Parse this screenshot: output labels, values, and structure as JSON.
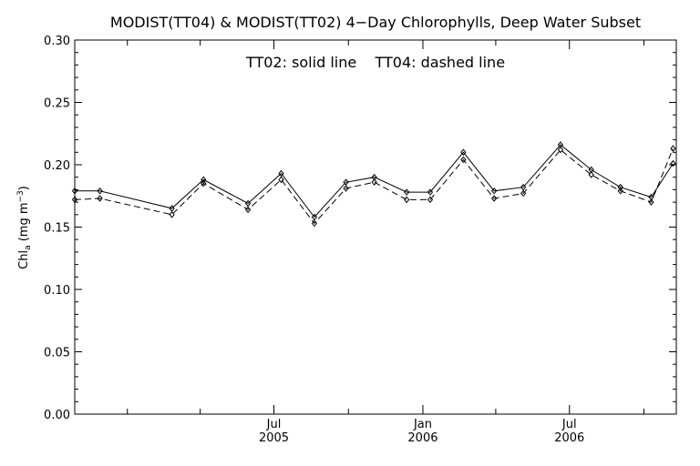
{
  "chart_data": {
    "type": "line",
    "title": "MODIST(TT04) & MODIST(TT02) 4−Day Chlorophylls, Deep Water Subset",
    "annotation": "TT02: solid line    TT04: dashed line",
    "ylabel": {
      "main": "Chl",
      "sub": "a",
      "units_open": " (mg m",
      "sup": "−3",
      "units_close": ")"
    },
    "xlabel": "",
    "ylim": [
      0.0,
      0.3
    ],
    "yticks": [
      "0.00",
      "0.05",
      "0.10",
      "0.15",
      "0.20",
      "0.25",
      "0.30"
    ],
    "xlim": [
      "2004-10-28",
      "2006-11-10"
    ],
    "xticks": [
      {
        "date": "2005-07-01",
        "month": "Jul",
        "year": "2005"
      },
      {
        "date": "2006-01-01",
        "month": "Jan",
        "year": "2006"
      },
      {
        "date": "2006-07-01",
        "month": "Jul",
        "year": "2006"
      }
    ],
    "minor_ticks": [
      "2004-10-01",
      "2005-01-01",
      "2005-04-01",
      "2005-10-01",
      "2006-04-01",
      "2006-10-01"
    ],
    "grid": false,
    "series": [
      {
        "name": "TT02",
        "style": "solid",
        "x": [
          "2004-10-28",
          "2004-11-28",
          "2005-02-25",
          "2005-04-05",
          "2005-05-30",
          "2005-07-10",
          "2005-08-20",
          "2005-09-28",
          "2005-11-02",
          "2005-12-12",
          "2006-01-10",
          "2006-02-20",
          "2006-03-30",
          "2006-05-05",
          "2006-06-20",
          "2006-07-28",
          "2006-09-02",
          "2006-10-10",
          "2006-11-06"
        ],
        "values": [
          0.179,
          0.179,
          0.165,
          0.188,
          0.169,
          0.193,
          0.158,
          0.186,
          0.19,
          0.178,
          0.178,
          0.21,
          0.179,
          0.182,
          0.216,
          0.196,
          0.182,
          0.174,
          0.201
        ]
      },
      {
        "name": "TT04",
        "style": "dashed",
        "x": [
          "2004-10-28",
          "2004-11-28",
          "2005-02-25",
          "2005-04-05",
          "2005-05-30",
          "2005-07-10",
          "2005-08-20",
          "2005-09-28",
          "2005-11-02",
          "2005-12-12",
          "2006-01-10",
          "2006-02-20",
          "2006-03-30",
          "2006-05-05",
          "2006-06-20",
          "2006-07-28",
          "2006-09-02",
          "2006-10-10",
          "2006-11-06"
        ],
        "values": [
          0.172,
          0.173,
          0.16,
          0.185,
          0.164,
          0.188,
          0.153,
          0.181,
          0.186,
          0.172,
          0.172,
          0.204,
          0.173,
          0.177,
          0.212,
          0.192,
          0.179,
          0.17,
          0.213
        ]
      }
    ]
  }
}
